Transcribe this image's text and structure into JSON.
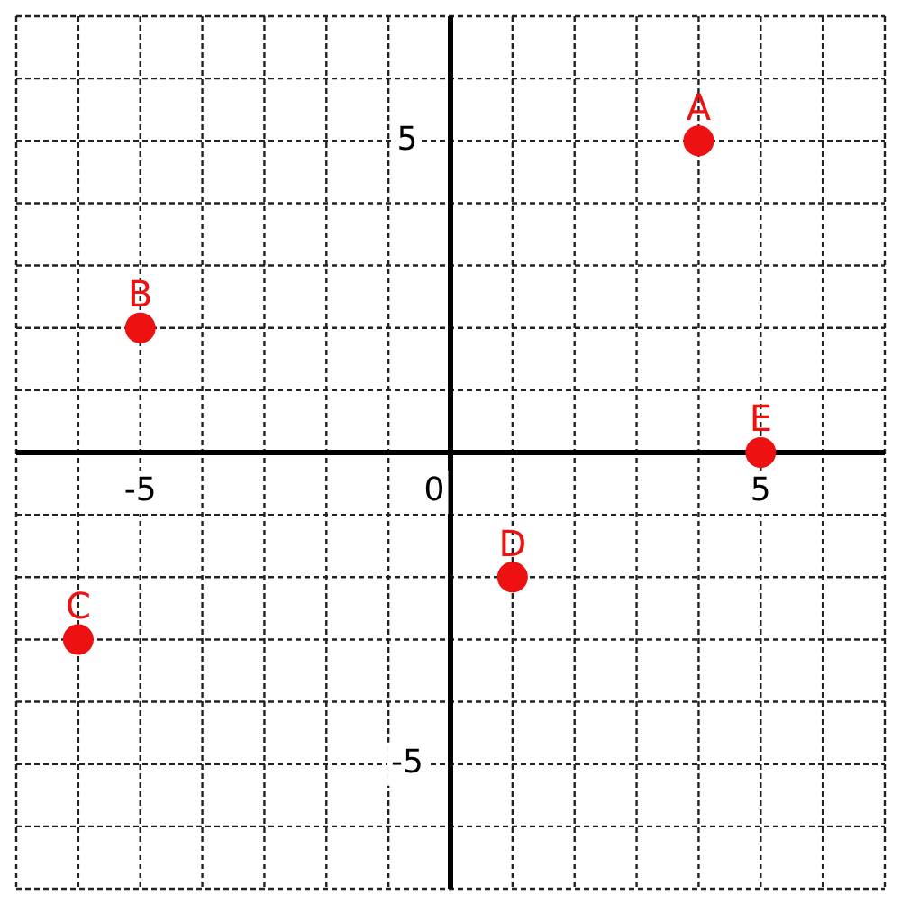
{
  "chart_data": {
    "type": "scatter",
    "grid": true,
    "marker": "circle",
    "legend": false,
    "xlim": [
      -7,
      7
    ],
    "ylim": [
      -7,
      7
    ],
    "xticks": [
      {
        "value": -7,
        "label": null
      },
      {
        "value": -6,
        "label": null
      },
      -5,
      {
        "value": -4,
        "label": null
      },
      {
        "value": -3,
        "label": null
      },
      {
        "value": -2,
        "label": null
      },
      {
        "value": -1,
        "label": null
      },
      0,
      {
        "value": 1,
        "label": null
      },
      {
        "value": 2,
        "label": null
      },
      {
        "value": 3,
        "label": null
      },
      {
        "value": 4,
        "label": null
      },
      5,
      {
        "value": 6,
        "label": null
      },
      {
        "value": 7,
        "label": null
      }
    ],
    "yticks": [
      {
        "value": -7,
        "label": null
      },
      {
        "value": -6,
        "label": null
      },
      -5,
      {
        "value": -4,
        "label": null
      },
      {
        "value": -3,
        "label": null
      },
      {
        "value": -2,
        "label": null
      },
      {
        "value": -1,
        "label": null
      },
      {
        "value": 0,
        "label": null
      },
      {
        "value": 1,
        "label": null
      },
      {
        "value": 2,
        "label": null
      },
      {
        "value": 3,
        "label": null
      },
      {
        "value": 4,
        "label": null
      },
      5,
      {
        "value": 6,
        "label": null
      },
      {
        "value": 7,
        "label": null
      }
    ],
    "series": [
      {
        "color": "#ee1111",
        "x": [
          4,
          -5,
          -6,
          1,
          5
        ],
        "values": [
          5,
          2,
          -3,
          -2,
          0
        ]
      }
    ],
    "annotations": [
      {
        "text": "A",
        "x": 4,
        "y": 5
      },
      {
        "text": "B",
        "x": -5,
        "y": 2
      },
      {
        "text": "C",
        "x": -6,
        "y": -3
      },
      {
        "text": "D",
        "x": 1,
        "y": -2
      },
      {
        "text": "E",
        "x": 5,
        "y": 0
      }
    ]
  }
}
